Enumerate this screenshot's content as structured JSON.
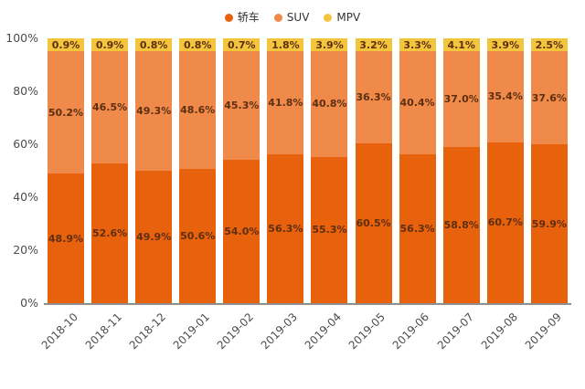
{
  "chart_data": {
    "type": "bar",
    "stacked": true,
    "percent_stacked": true,
    "title": "",
    "xlabel": "",
    "ylabel": "",
    "categories": [
      "2018-10",
      "2018-11",
      "2018-12",
      "2019-01",
      "2019-02",
      "2019-03",
      "2019-04",
      "2019-05",
      "2019-06",
      "2019-07",
      "2019-08",
      "2019-09"
    ],
    "series": [
      {
        "name": "轿车",
        "color": "#e8610d",
        "values": [
          48.9,
          52.6,
          49.9,
          50.6,
          54.0,
          56.3,
          55.3,
          60.5,
          56.3,
          58.8,
          60.7,
          59.9
        ]
      },
      {
        "name": "SUV",
        "color": "#ef8a4a",
        "values": [
          50.2,
          46.5,
          49.3,
          48.6,
          45.3,
          41.8,
          40.8,
          36.3,
          40.4,
          37.0,
          35.4,
          37.6
        ]
      },
      {
        "name": "MPV",
        "color": "#f3c53d",
        "values": [
          0.9,
          0.9,
          0.8,
          0.8,
          0.7,
          1.8,
          3.9,
          3.2,
          3.3,
          4.1,
          3.9,
          2.5
        ]
      }
    ],
    "value_label_suffix": "%",
    "y_ticks": [
      "100%",
      "80%",
      "60%",
      "40%",
      "20%",
      "0%"
    ],
    "ylim": [
      0,
      100
    ],
    "grid": false,
    "legend_position": "top",
    "colors": {
      "axis_text": "#4d4d4d",
      "value_label_text": "#5e2f10",
      "axis_line": "#909090",
      "background": "#ffffff"
    }
  }
}
